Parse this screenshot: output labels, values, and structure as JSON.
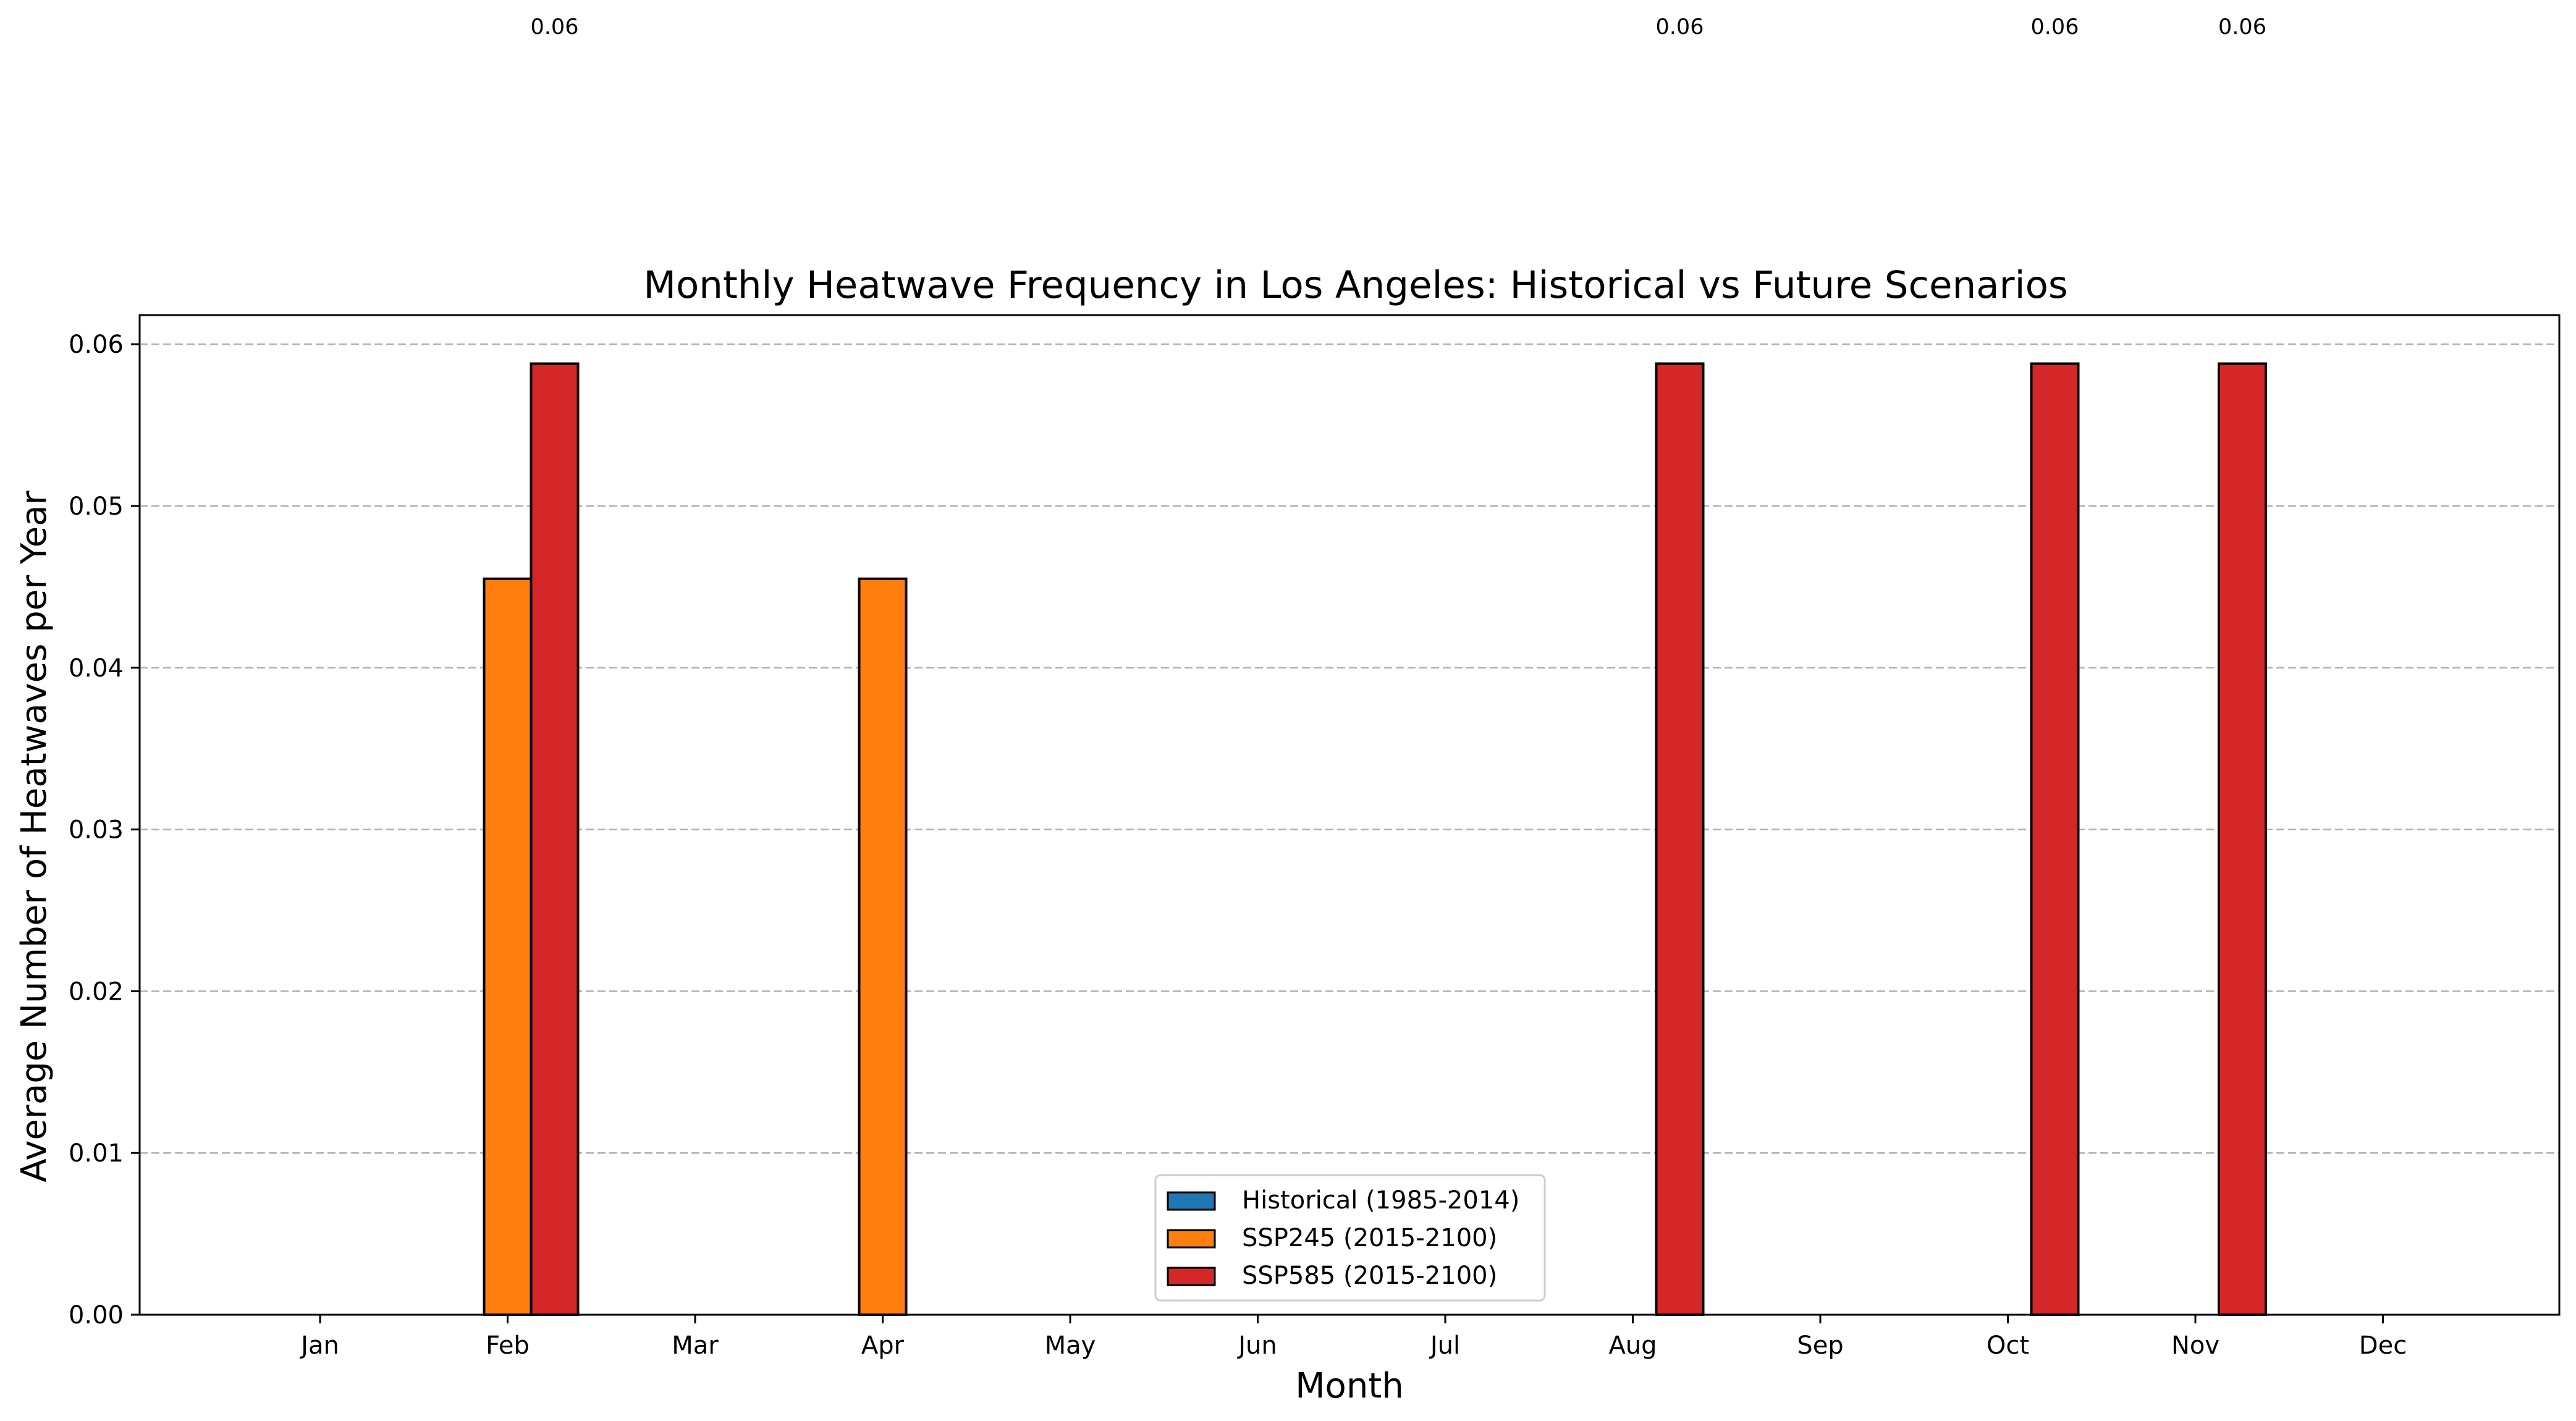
{
  "chart_data": {
    "type": "bar",
    "title": "Monthly Heatwave Frequency in Los Angeles: Historical vs Future Scenarios",
    "xlabel": "Month",
    "ylabel": "Average Number of Heatwaves per Year",
    "categories": [
      "Jan",
      "Feb",
      "Mar",
      "Apr",
      "May",
      "Jun",
      "Jul",
      "Aug",
      "Sep",
      "Oct",
      "Nov",
      "Dec"
    ],
    "series": [
      {
        "name": "Historical (1985-2014)",
        "color": "#1f77b4",
        "values": [
          0,
          0,
          0,
          0,
          0,
          0,
          0,
          0,
          0,
          0,
          0,
          0
        ]
      },
      {
        "name": "SSP245 (2015-2100)",
        "color": "#ff7f0e",
        "values": [
          0,
          0.0455,
          0,
          0.0455,
          0,
          0,
          0,
          0,
          0,
          0,
          0,
          0
        ]
      },
      {
        "name": "SSP585 (2015-2100)",
        "color": "#d62728",
        "values": [
          0,
          0.0588,
          0,
          0,
          0,
          0,
          0,
          0.0588,
          0,
          0.0588,
          0.0588,
          0
        ]
      }
    ],
    "ylim": [
      0,
      0.0618
    ],
    "yticks": [
      "0.00",
      "0.01",
      "0.02",
      "0.03",
      "0.04",
      "0.05",
      "0.06"
    ],
    "grid": "y-dashed",
    "legend_position": "lower-center",
    "data_labels": [
      {
        "category": "Feb",
        "series": "SSP585 (2015-2100)",
        "text": "0.06"
      },
      {
        "category": "Aug",
        "series": "SSP585 (2015-2100)",
        "text": "0.06"
      },
      {
        "category": "Oct",
        "series": "SSP585 (2015-2100)",
        "text": "0.06"
      },
      {
        "category": "Nov",
        "series": "SSP585 (2015-2100)",
        "text": "0.06"
      }
    ]
  }
}
